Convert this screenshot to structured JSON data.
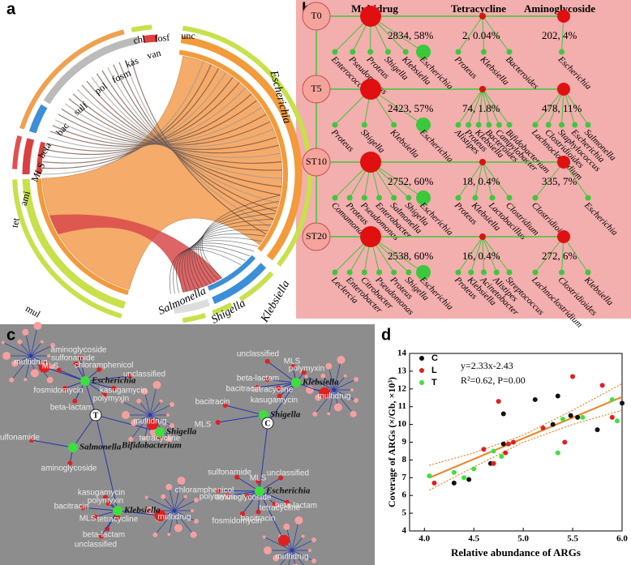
{
  "panel_labels": [
    "a",
    "b",
    "c",
    "d"
  ],
  "panel_a": {
    "arg_labels": [
      "tet",
      "ami",
      "MLS",
      "beta",
      "bac",
      "sulf",
      "pol",
      "fosm",
      "kas",
      "van",
      "chl",
      "fosf",
      "unc",
      "mul"
    ],
    "genus_labels": [
      "Escherichia",
      "Salmonella",
      "Shigella",
      "Klebsiella"
    ]
  },
  "panel_b": {
    "headers": [
      "Multidrug",
      "Tetracycline",
      "Aminoglycoside"
    ],
    "rows": [
      {
        "sample": "T0",
        "multidrug": {
          "label": "2834, 58%",
          "genera": [
            "Enterococcus",
            "Pseudomonas",
            "Proteus",
            "Shigella",
            "Klebsiella",
            "Escherichia"
          ]
        },
        "tetracycline": {
          "label": "2, 0.04%",
          "genera": [
            "Proteus",
            "Klebsiella",
            "Bacteroides"
          ]
        },
        "aminoglycoside": {
          "label": "202, 4%",
          "genera": [
            "Escherichia"
          ]
        }
      },
      {
        "sample": "T5",
        "multidrug": {
          "label": "2423, 57%",
          "genera": [
            "Proteus",
            "Shigella",
            "Klebsiella",
            "Escherichia"
          ]
        },
        "tetracycline": {
          "label": "74, 1.8%",
          "genera": [
            "Alistipes",
            "Proteus",
            "Klebsiella",
            "Bacteroides",
            "Campylobacter",
            "Bifidobacterium"
          ]
        },
        "aminoglycoside": {
          "label": "478, 11%",
          "genera": [
            "Lachnoclostridium",
            "Clostridioides",
            "Staphylococcus",
            "Escherichia",
            "Salmonella"
          ]
        }
      },
      {
        "sample": "ST10",
        "multidrug": {
          "label": "2752, 60%",
          "genera": [
            "Comamonas",
            "Proteus",
            "Pseudomonas",
            "Enterobacter",
            "Salmonella",
            "Shigella",
            "Escherichia"
          ]
        },
        "tetracycline": {
          "label": "18, 0.4%",
          "genera": [
            "Proteus",
            "Klebsiella",
            "Lactobacillus",
            "Clostridium"
          ]
        },
        "aminoglycoside": {
          "label": "335, 7%",
          "genera": [
            "Clostridioides",
            "Escherichia"
          ]
        }
      },
      {
        "sample": "ST20",
        "multidrug": {
          "label": "2538, 60%",
          "genera": [
            "Leclercia",
            "Enterobacter",
            "Citrobacter",
            "Pseudomonas",
            "Proteus",
            "Shigella",
            "Escherichia"
          ]
        },
        "tetracycline": {
          "label": "16, 0.4%",
          "genera": [
            "Proteus",
            "Klebsiella",
            "Acinetobacter",
            "Alistipes",
            "Streptococcus"
          ]
        },
        "aminoglycoside": {
          "label": "272, 6%",
          "genera": [
            "Lachnoclostridium",
            "Clostridioides",
            "Klebsiella"
          ]
        }
      }
    ]
  },
  "panel_c": {
    "genera": [
      "Escherichia",
      "Klebsiella",
      "Shigella",
      "Shigella",
      "Salmonella",
      "Bifidobacterium",
      "Klebsiella",
      "Escherichia"
    ],
    "center_nodes": [
      "T",
      "C"
    ],
    "arg_nodes": [
      "multidrug",
      "aminoglycoside",
      "sulfonamide",
      "chloramphenicol",
      "MLS",
      "unclassified",
      "fosmidomycin",
      "kasugamycin",
      "polymyxin",
      "beta-lactam",
      "unclassified",
      "MLS",
      "polymyxin",
      "beta-lactam",
      "bacitracin",
      "tetracycline",
      "kasugamycin",
      "multidrug",
      "bacitracin",
      "MLS",
      "multidrug",
      "tetracycline",
      "sulfonamide",
      "aminoglycoside",
      "kasugamycin",
      "polymyxin",
      "bacitracin",
      "MLS",
      "tetracycline",
      "multidrug",
      "beta-lactam",
      "unclassified",
      "sulfonamide",
      "unclassified",
      "MLS",
      "chloramphenicol",
      "aminoglycoside",
      "polymyxin",
      "tetracycline",
      "beta-lactam",
      "fosmidomycin",
      "bacitracin",
      "multidrug"
    ]
  },
  "chart_data": {
    "type": "scatter",
    "x_label": "Relative abundance of ARGs",
    "y_label": "Coverage of ARGs (×/Gb, ×10³)",
    "annotations": [
      "y=2.33x-2.43",
      "R²=0.62, P=0.00"
    ],
    "xlim": [
      3.85,
      6.0
    ],
    "ylim": [
      4,
      14
    ],
    "xticks": [
      {
        "value": 4.0,
        "label": "4.0"
      },
      4.5,
      {
        "value": 5.0,
        "label": "5.0"
      },
      5.5,
      {
        "value": 6.0,
        "label": "6.0"
      }
    ],
    "yticks": [
      4,
      5,
      6,
      7,
      8,
      9,
      10,
      11,
      12,
      13,
      14
    ],
    "series": [
      {
        "name": "C",
        "color": "#111111",
        "x": [
          5.12,
          5.35,
          4.8,
          4.8,
          4.67,
          4.45,
          5.3,
          5.55,
          5.75,
          6.0,
          4.3,
          5.48
        ],
        "values": [
          11.4,
          11.6,
          10.6,
          8.9,
          7.8,
          6.9,
          10.0,
          10.4,
          9.7,
          11.2,
          6.7,
          10.5
        ]
      },
      {
        "name": "L",
        "color": "#e02020",
        "x": [
          5.5,
          5.8,
          4.75,
          4.6,
          4.9,
          4.82,
          5.42,
          5.9,
          4.1,
          4.7,
          4.85,
          5.2
        ],
        "values": [
          12.7,
          12.2,
          11.3,
          8.6,
          9.0,
          8.4,
          9.0,
          10.4,
          6.7,
          7.8,
          8.9,
          9.8
        ]
      },
      {
        "name": "T",
        "color": "#40e040",
        "x": [
          4.05,
          4.4,
          4.5,
          4.7,
          4.78,
          5.35,
          5.4,
          5.6,
          5.9,
          5.95,
          4.3
        ],
        "values": [
          7.1,
          7.0,
          7.5,
          8.5,
          8.2,
          8.4,
          10.3,
          10.4,
          11.4,
          10.2,
          7.3
        ]
      }
    ],
    "fit": {
      "color": "#f08020",
      "x": [
        4.05,
        6.0
      ],
      "y": [
        7.0,
        11.55
      ]
    },
    "band_upper": {
      "x": [
        4.05,
        4.5,
        5.0,
        5.5,
        6.0
      ],
      "y": [
        7.7,
        8.4,
        9.4,
        10.8,
        12.3
      ]
    },
    "band_lower": {
      "x": [
        4.05,
        4.5,
        5.0,
        5.5,
        6.0
      ],
      "y": [
        6.3,
        7.6,
        9.0,
        10.0,
        10.8
      ]
    }
  }
}
